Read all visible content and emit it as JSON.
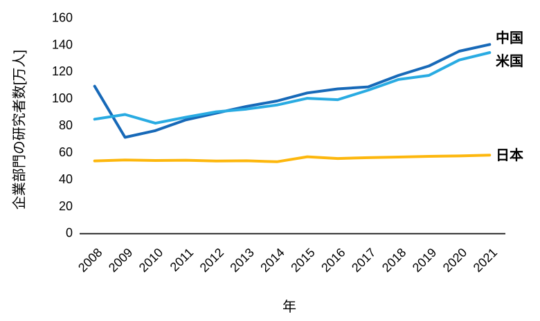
{
  "chart_data": {
    "type": "line",
    "title": "",
    "xlabel": "年",
    "ylabel": "企業部門の研究者数[万人]",
    "x": [
      "2008",
      "2009",
      "2010",
      "2011",
      "2012",
      "2013",
      "2014",
      "2015",
      "2016",
      "2017",
      "2018",
      "2019",
      "2020",
      "2021"
    ],
    "series": [
      {
        "name": "中国",
        "color": "#1769b8",
        "values": [
          109,
          71,
          76,
          84,
          89,
          94,
          98,
          104,
          107,
          108.5,
          117,
          124,
          135,
          140
        ]
      },
      {
        "name": "米国",
        "color": "#29abe2",
        "values": [
          84.5,
          88,
          81.5,
          86,
          90,
          92,
          95,
          100,
          99,
          106,
          114,
          117,
          128.5,
          134
        ]
      },
      {
        "name": "日本",
        "color": "#fdb70d",
        "values": [
          53.5,
          54.2,
          53.8,
          54,
          53.4,
          53.6,
          52.9,
          56.6,
          55.3,
          55.9,
          56.4,
          56.9,
          57.2,
          57.8
        ]
      }
    ],
    "ylim": [
      0,
      160
    ],
    "ytick_step": 20,
    "grid": false,
    "legend_position": "line-end-labels-right",
    "axis_color": "#262626"
  }
}
